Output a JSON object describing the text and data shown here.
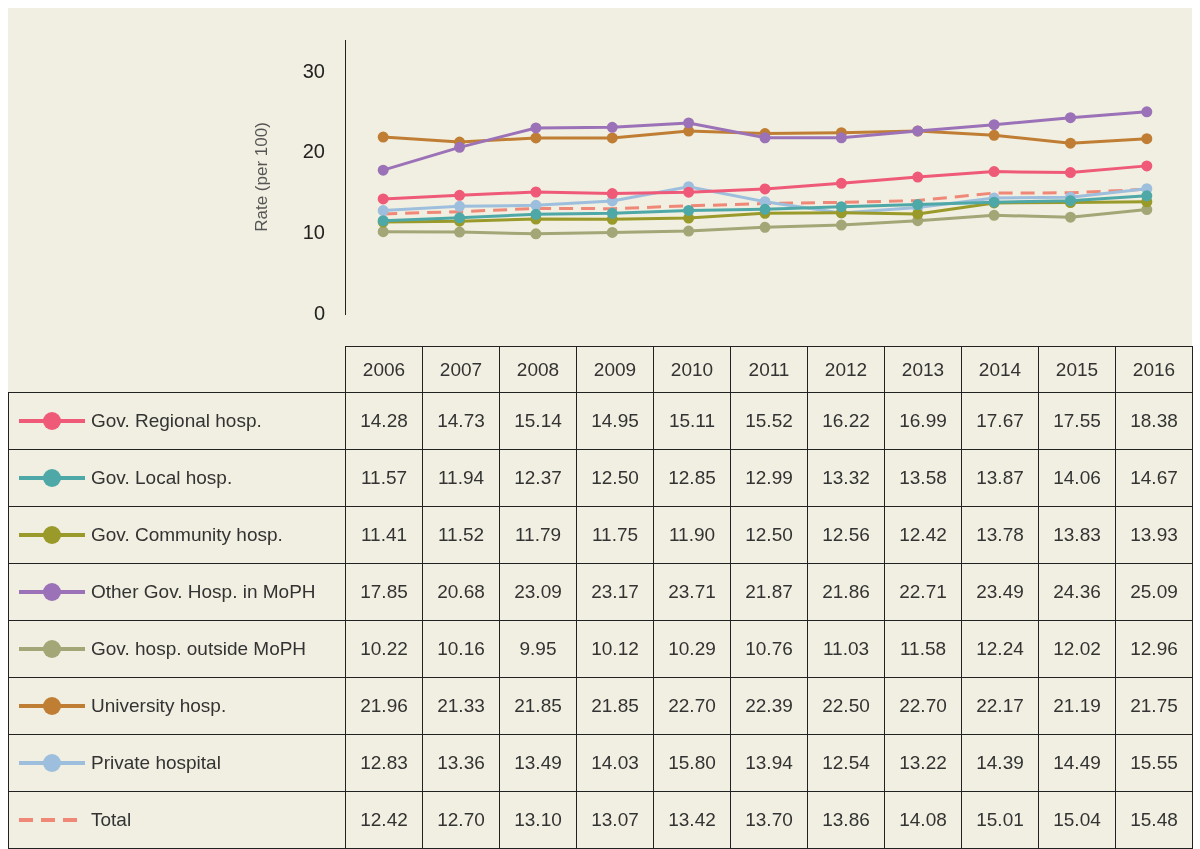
{
  "chart_data": {
    "type": "line",
    "ylabel": "Rate (per 100)",
    "ylim": [
      0,
      34
    ],
    "yticks": [
      0,
      10,
      20,
      30
    ],
    "grid": false,
    "legend": "bottom",
    "marker": "circle",
    "line_style": "solid",
    "categories": [
      "2006",
      "2007",
      "2008",
      "2009",
      "2010",
      "2011",
      "2012",
      "2013",
      "2014",
      "2015",
      "2016"
    ],
    "series": [
      {
        "name": "Gov. Regional hosp.",
        "color": "#ef5a78",
        "values": [
          14.28,
          14.73,
          15.14,
          14.95,
          15.11,
          15.52,
          16.22,
          16.99,
          17.67,
          17.55,
          18.38
        ],
        "value_labels": [
          "14.28",
          "14.73",
          "15.14",
          "14.95",
          "15.11",
          "15.52",
          "16.22",
          "16.99",
          "17.67",
          "17.55",
          "18.38"
        ]
      },
      {
        "name": "Gov. Local hosp.",
        "color": "#4fa8a8",
        "values": [
          11.57,
          11.94,
          12.37,
          12.5,
          12.85,
          12.99,
          13.32,
          13.58,
          13.87,
          14.06,
          14.67
        ],
        "value_labels": [
          "11.57",
          "11.94",
          "12.37",
          "12.50",
          "12.85",
          "12.99",
          "13.32",
          "13.58",
          "13.87",
          "14.06",
          "14.67"
        ]
      },
      {
        "name": "Gov. Community hosp.",
        "color": "#9a9a2a",
        "values": [
          11.41,
          11.52,
          11.79,
          11.75,
          11.9,
          12.5,
          12.56,
          12.42,
          13.78,
          13.83,
          13.93
        ],
        "value_labels": [
          "11.41",
          "11.52",
          "11.79",
          "11.75",
          "11.90",
          "12.50",
          "12.56",
          "12.42",
          "13.78",
          "13.83",
          "13.93"
        ]
      },
      {
        "name": "Other Gov. Hosp. in MoPH",
        "color": "#9b72b8",
        "values": [
          17.85,
          20.68,
          23.09,
          23.17,
          23.71,
          21.87,
          21.86,
          22.71,
          23.49,
          24.36,
          25.09
        ],
        "value_labels": [
          "17.85",
          "20.68",
          "23.09",
          "23.17",
          "23.71",
          "21.87",
          "21.86",
          "22.71",
          "23.49",
          "24.36",
          "25.09"
        ]
      },
      {
        "name": "Gov. hosp. outside MoPH",
        "color": "#a3a676",
        "values": [
          10.22,
          10.16,
          9.95,
          10.12,
          10.29,
          10.76,
          11.03,
          11.58,
          12.24,
          12.02,
          12.96
        ],
        "value_labels": [
          "10.22",
          "10.16",
          "9.95",
          "10.12",
          "10.29",
          "10.76",
          "11.03",
          "11.58",
          "12.24",
          "12.02",
          "12.96"
        ]
      },
      {
        "name": "University hosp.",
        "color": "#c07e34",
        "values": [
          21.96,
          21.33,
          21.85,
          21.85,
          22.7,
          22.39,
          22.5,
          22.7,
          22.17,
          21.19,
          21.75
        ],
        "value_labels": [
          "21.96",
          "21.33",
          "21.85",
          "21.85",
          "22.70",
          "22.39",
          "22.50",
          "22.70",
          "22.17",
          "21.19",
          "21.75"
        ]
      },
      {
        "name": "Private hospital",
        "color": "#9dbfdd",
        "values": [
          12.83,
          13.36,
          13.49,
          14.03,
          15.8,
          13.94,
          12.54,
          13.22,
          14.39,
          14.49,
          15.55
        ],
        "value_labels": [
          "12.83",
          "13.36",
          "13.49",
          "14.03",
          "15.80",
          "13.94",
          "12.54",
          "13.22",
          "14.39",
          "14.49",
          "15.55"
        ]
      },
      {
        "name": "Total",
        "color": "#f08878",
        "marker": "none",
        "line_style": "dashed",
        "values": [
          12.42,
          12.7,
          13.1,
          13.07,
          13.42,
          13.7,
          13.86,
          14.08,
          15.01,
          15.04,
          15.48
        ],
        "value_labels": [
          "12.42",
          "12.70",
          "13.10",
          "13.07",
          "13.42",
          "13.70",
          "13.86",
          "14.08",
          "15.01",
          "15.04",
          "15.48"
        ]
      }
    ]
  }
}
